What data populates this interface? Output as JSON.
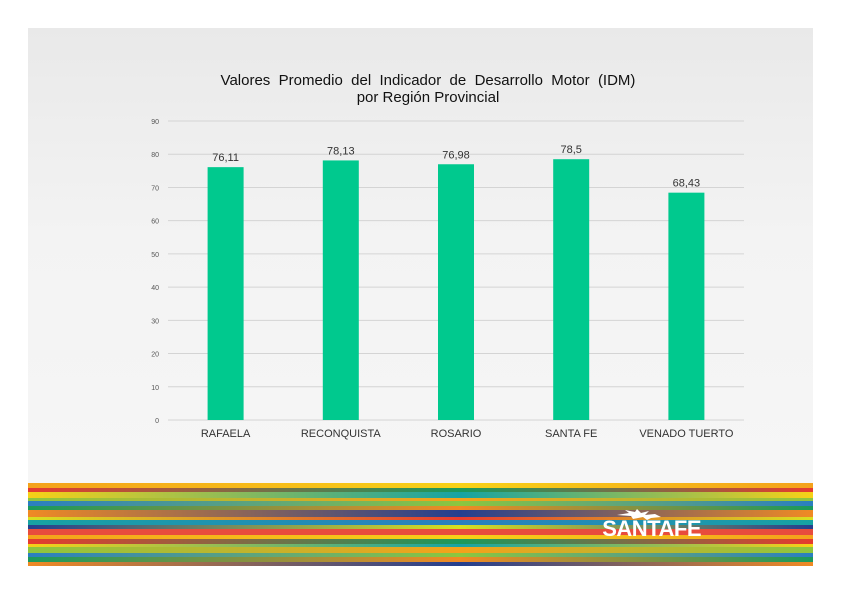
{
  "chart_data": {
    "type": "bar",
    "title": "Valores  Promedio  del  Indicador  de  Desarrollo  Motor  (IDM)",
    "subtitle": "por Región Provincial",
    "categories": [
      "RAFAELA",
      "RECONQUISTA",
      "ROSARIO",
      "SANTA FE",
      "VENADO TUERTO"
    ],
    "values": [
      76.11,
      78.13,
      76.98,
      78.5,
      68.43
    ],
    "value_labels": [
      "76,11",
      "78,13",
      "76,98",
      "78,5",
      "68,43"
    ],
    "ylim": [
      0,
      90
    ],
    "yticks": [
      0,
      10,
      20,
      30,
      40,
      50,
      60,
      70,
      80,
      90
    ],
    "grid": true,
    "bar_color": "#00c98e",
    "xlabel": "",
    "ylabel": ""
  },
  "footer": {
    "logo_text": "SANTAFE",
    "stripe_colors": [
      "#f4a21b",
      "#e63b2e",
      "#f7d117",
      "#8cc63f",
      "#2a7fc0",
      "#1a9a5c",
      "#f08a24",
      "#d8e021",
      "#17a3a3",
      "#243f8f",
      "#e84c3d"
    ]
  }
}
